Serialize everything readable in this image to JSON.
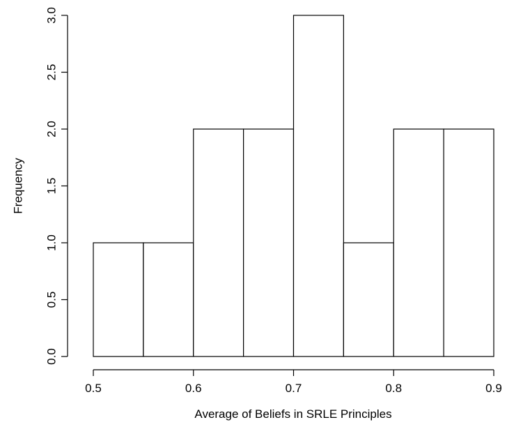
{
  "chart_data": {
    "type": "bar",
    "title": "",
    "xlabel": "Average of Beliefs in SRLE Principles",
    "ylabel": "Frequency",
    "bins": [
      {
        "start": 0.5,
        "end": 0.55,
        "count": 1
      },
      {
        "start": 0.55,
        "end": 0.6,
        "count": 1
      },
      {
        "start": 0.6,
        "end": 0.65,
        "count": 2
      },
      {
        "start": 0.65,
        "end": 0.7,
        "count": 2
      },
      {
        "start": 0.7,
        "end": 0.75,
        "count": 3
      },
      {
        "start": 0.75,
        "end": 0.8,
        "count": 1
      },
      {
        "start": 0.8,
        "end": 0.85,
        "count": 2
      },
      {
        "start": 0.85,
        "end": 0.9,
        "count": 2
      }
    ],
    "xlim": [
      0.5,
      0.9
    ],
    "ylim": [
      0,
      3
    ],
    "x_ticks": [
      "0.5",
      "0.6",
      "0.7",
      "0.8",
      "0.9"
    ],
    "y_ticks": [
      "0.0",
      "0.5",
      "1.0",
      "1.5",
      "2.0",
      "2.5",
      "3.0"
    ],
    "grid": false,
    "bar_fill": "#ffffff",
    "bar_stroke": "#000000"
  }
}
